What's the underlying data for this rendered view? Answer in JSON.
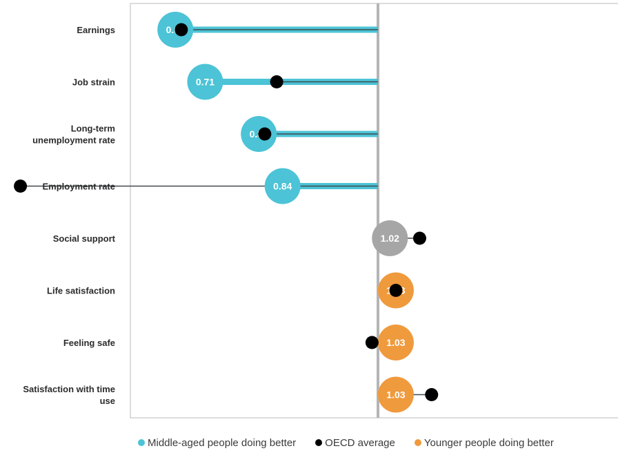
{
  "chart_data": {
    "type": "dot-range",
    "baseline": 1.0,
    "xlim": [
      0.5,
      1.2
    ],
    "grid": false,
    "legend_position": "bottom",
    "colors": {
      "middle_aged": "#4cc3d6",
      "oecd": "#000000",
      "younger": "#ef9a3d",
      "neutral": "#a6a6a6",
      "baseline": "#b5b5b5"
    },
    "categories": [
      "Earnings",
      "Job strain",
      "Long-term unemployment rate",
      "Employment rate",
      "Social support",
      "Life satisfaction",
      "Feeling safe",
      "Satisfaction with time use"
    ],
    "category_label_lines": [
      [
        "Earnings"
      ],
      [
        "Job strain"
      ],
      [
        "Long-term",
        "unemployment rate"
      ],
      [
        "Employment rate"
      ],
      [
        "Social support"
      ],
      [
        "Life satisfaction"
      ],
      [
        "Feeling safe"
      ],
      [
        "Satisfaction with time",
        "use"
      ]
    ],
    "values": [
      0.66,
      0.71,
      0.8,
      0.84,
      1.02,
      1.03,
      1.03,
      1.03
    ],
    "value_labels": [
      "0.66",
      "0.71",
      "0.80",
      "0.84",
      "1.02",
      "1.03",
      "1.03",
      "1.03"
    ],
    "groups": [
      "middle_aged",
      "middle_aged",
      "middle_aged",
      "middle_aged",
      "neutral",
      "younger",
      "younger",
      "younger"
    ],
    "oecd_average": [
      0.67,
      0.83,
      0.81,
      0.4,
      1.07,
      1.03,
      0.99,
      1.09
    ],
    "series": [
      {
        "name": "Middle-aged people doing better",
        "key": "middle_aged"
      },
      {
        "name": "OECD average",
        "key": "oecd"
      },
      {
        "name": "Younger people doing better",
        "key": "younger"
      }
    ]
  },
  "legend": {
    "middle_aged": "Middle-aged people doing better",
    "oecd": "OECD average",
    "younger": "Younger people doing better"
  }
}
